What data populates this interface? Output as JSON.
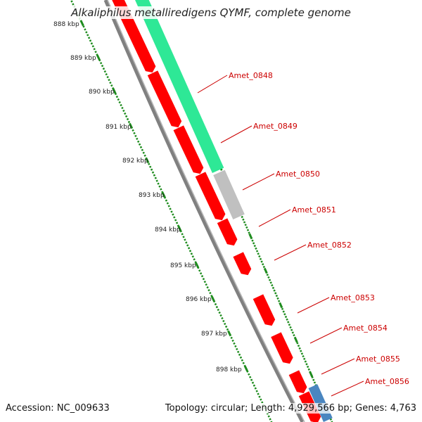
{
  "title": "Alkaliphilus metalliredigens QYMF, complete genome",
  "accession_text": "Accession: NC_009633",
  "topology_text": "Topology: circular; Length: 4,929,566 bp; Genes: 4,763",
  "kbp_ticks": [
    "888 kbp",
    "889 kbp",
    "890 kbp",
    "891 kbp",
    "892 kbp",
    "893 kbp",
    "894 kbp",
    "895 kbp",
    "896 kbp",
    "897 kbp",
    "898 kbp"
  ],
  "gene_labels": [
    "Amet_0848",
    "Amet_0849",
    "Amet_0850",
    "Amet_0851",
    "Amet_0852",
    "Amet_0853",
    "Amet_0854",
    "Amet_0855",
    "Amet_0856"
  ],
  "colors": {
    "gene": "#ff0000",
    "gene_label": "#cc0000",
    "green_feature": "#2ee896",
    "grey_feature": "#c0c0c0",
    "blue_feature": "#4a86c0",
    "backbone": "#808080",
    "tick": "#1e8c1e",
    "tick_label": "#222222"
  }
}
